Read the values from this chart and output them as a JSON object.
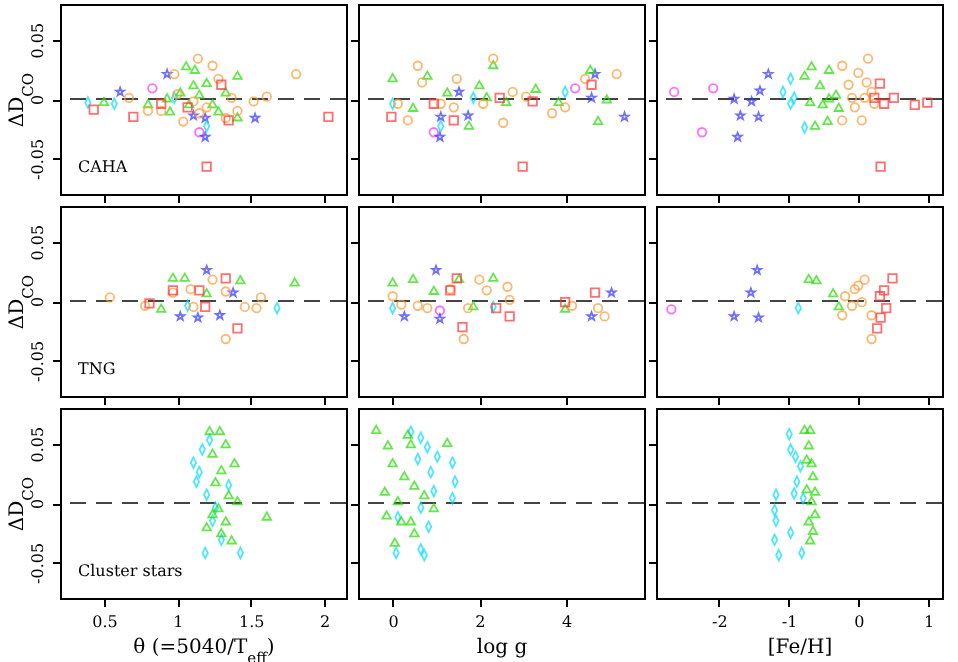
{
  "chart_data": [
    {
      "type": "scatter",
      "ylabel": "ΔD$_{CO}$",
      "annotations": [
        "CAHA"
      ],
      "xlim": [
        0.2,
        2.15
      ],
      "xticks": [
        0.5,
        1,
        1.5,
        2
      ],
      "ylim": [
        -0.08,
        0.08
      ],
      "yticks": [
        -0.05,
        0,
        0.05
      ],
      "tick_labels": "y",
      "ref_lines": [
        {
          "axis": "y",
          "value": 0,
          "line_style": "dashed"
        }
      ],
      "series": [
        {
          "color": "#ff33ff",
          "marker": "circle",
          "x": [
            0.83,
            1.15
          ],
          "values": [
            0.009,
            -0.028
          ]
        },
        {
          "color": "#3333ff",
          "marker": "star",
          "x": [
            0.61,
            0.93,
            1.11,
            1.19,
            1.19,
            1.53
          ],
          "values": [
            0.006,
            0.021,
            -0.014,
            -0.032,
            -0.016,
            -0.016
          ]
        },
        {
          "color": "#00ddff",
          "marker": "diamond",
          "x": [
            0.39,
            0.57,
            1.2,
            0.98
          ],
          "values": [
            -0.003,
            -0.004,
            -0.023,
            0.001
          ]
        },
        {
          "color": "#22dd00",
          "marker": "triangle",
          "x": [
            1.06,
            1.12,
            1.41,
            0.8,
            0.5,
            1.24,
            1.02,
            1.11,
            0.93,
            1.28,
            1.15,
            0.95,
            1.33,
            1.41,
            1.08,
            1.2
          ],
          "values": [
            0.028,
            0.025,
            0.02,
            -0.004,
            -0.002,
            -0.004,
            0.006,
            0.012,
            0.001,
            -0.01,
            0.004,
            -0.01,
            0.006,
            -0.015,
            -0.004,
            0.014
          ]
        },
        {
          "color": "#ff9933",
          "marker": "circle",
          "x": [
            1.14,
            1.24,
            1.81,
            0.98,
            1.61,
            1.52,
            1.04,
            0.67,
            1.33,
            1.41,
            0.89,
            1.11,
            1.2,
            1.0,
            1.28,
            1.37,
            0.8,
            1.15
          ],
          "values": [
            0.034,
            0.028,
            0.021,
            0.021,
            0.002,
            -0.002,
            -0.019,
            0.001,
            -0.016,
            -0.01,
            -0.01,
            -0.002,
            -0.007,
            0.004,
            0.017,
            0.001,
            -0.01,
            -0.012
          ]
        },
        {
          "color": "#ff3333",
          "marker": "square",
          "x": [
            0.43,
            0.7,
            1.2,
            1.35,
            2.03,
            1.3,
            1.07,
            0.89
          ],
          "values": [
            -0.009,
            -0.015,
            -0.057,
            -0.018,
            -0.015,
            0.012,
            -0.007,
            -0.004
          ]
        }
      ]
    },
    {
      "type": "scatter",
      "xlim": [
        -0.8,
        5.8
      ],
      "xticks": [
        0,
        2,
        4
      ],
      "ylim": [
        -0.08,
        0.08
      ],
      "yticks": [
        -0.05,
        0,
        0.05
      ],
      "tick_labels": false,
      "ref_lines": [
        {
          "axis": "y",
          "value": 0,
          "line_style": "dashed"
        }
      ],
      "series": [
        {
          "color": "#ff33ff",
          "marker": "circle",
          "x": [
            0.95,
            4.21
          ],
          "values": [
            -0.028,
            0.009
          ]
        },
        {
          "color": "#3333ff",
          "marker": "star",
          "x": [
            1.11,
            1.09,
            1.74,
            1.53,
            4.67,
            5.35,
            4.59
          ],
          "values": [
            -0.015,
            -0.032,
            -0.014,
            0.006,
            0.021,
            -0.015,
            0.001
          ]
        },
        {
          "color": "#00ddff",
          "marker": "diamond",
          "x": [
            1.11,
            0.0,
            1.86,
            3.98
          ],
          "values": [
            -0.023,
            -0.004,
            0.001,
            0.006
          ]
        },
        {
          "color": "#22dd00",
          "marker": "triangle",
          "x": [
            0.0,
            0.8,
            2.32,
            2.0,
            1.76,
            0.47,
            4.56,
            4.74,
            4.94,
            3.3,
            3.83,
            2.62,
            1.26,
            2.17
          ],
          "values": [
            0.018,
            0.02,
            0.029,
            0.012,
            -0.022,
            -0.007,
            0.025,
            -0.018,
            0,
            0.009,
            -0.002,
            -0.002,
            0.006,
            0.002
          ]
        },
        {
          "color": "#ff9933",
          "marker": "circle",
          "x": [
            0.58,
            2.32,
            5.17,
            0.68,
            0.35,
            2.55,
            1.48,
            4.44,
            3.68,
            2.77,
            0.12,
            1.41,
            2.09,
            3.98,
            3.08,
            1.11
          ],
          "values": [
            0.028,
            0.034,
            0.021,
            0.014,
            -0.018,
            -0.02,
            0.017,
            0.017,
            -0.012,
            0.006,
            -0.004,
            -0.007,
            -0.004,
            -0.007,
            0.002,
            -0.004
          ]
        },
        {
          "color": "#ff3333",
          "marker": "square",
          "x": [
            -0.03,
            3.0,
            0.95,
            1.41,
            3.23,
            4.59,
            2.47
          ],
          "values": [
            -0.015,
            -0.057,
            -0.004,
            -0.018,
            -0.002,
            0.012,
            0.001
          ]
        }
      ]
    },
    {
      "type": "scatter",
      "xlim": [
        -2.9,
        1.2
      ],
      "xticks": [
        -2,
        -1,
        0,
        1
      ],
      "ylim": [
        -0.08,
        0.08
      ],
      "yticks": [
        -0.05,
        0,
        0.05
      ],
      "tick_labels": false,
      "ref_lines": [
        {
          "axis": "y",
          "value": 0,
          "line_style": "dashed"
        }
      ],
      "series": [
        {
          "color": "#ff33ff",
          "marker": "circle",
          "x": [
            -2.64,
            -2.08,
            -2.24
          ],
          "values": [
            0.006,
            0.009,
            -0.028
          ]
        },
        {
          "color": "#3333ff",
          "marker": "star",
          "x": [
            -1.78,
            -1.53,
            -1.41,
            -1.29,
            -1.69,
            -1.43,
            -1.73
          ],
          "values": [
            0,
            -0.002,
            0.007,
            0.021,
            -0.014,
            -0.015,
            -0.032
          ]
        },
        {
          "color": "#00ddff",
          "marker": "diamond",
          "x": [
            -0.97,
            -1.08,
            -0.97,
            -0.77,
            -0.92
          ],
          "values": [
            0.017,
            0.006,
            -0.004,
            -0.024,
            0.001
          ]
        },
        {
          "color": "#22dd00",
          "marker": "triangle",
          "x": [
            -0.67,
            -0.77,
            -0.42,
            -0.55,
            -0.69,
            -0.42,
            -0.32,
            -0.62,
            -0.44,
            -0.51,
            -0.28
          ],
          "values": [
            0.028,
            0.02,
            0.025,
            0.012,
            -0.002,
            0.001,
            0.004,
            -0.022,
            -0.018,
            -0.004,
            -0.007
          ]
        },
        {
          "color": "#ff9933",
          "marker": "circle",
          "x": [
            -0.23,
            0.14,
            0.0,
            -0.14,
            0.09,
            0.23,
            -0.23,
            0.05,
            -0.05,
            0.19,
            -0.09,
            0.12
          ],
          "values": [
            0.028,
            0.034,
            0.022,
            0.012,
            0.001,
            -0.004,
            -0.018,
            -0.018,
            -0.007,
            0.006,
            0.001,
            0.014
          ]
        },
        {
          "color": "#ff3333",
          "marker": "square",
          "x": [
            0.31,
            0.51,
            0.81,
            0.99,
            0.32,
            0.37,
            0.23
          ],
          "values": [
            0.013,
            0.001,
            -0.005,
            -0.003,
            -0.057,
            -0.004,
            0.001
          ]
        }
      ]
    },
    {
      "type": "scatter",
      "ylabel": "ΔD$_{CO}$",
      "annotations": [
        "TNG"
      ],
      "xlim": [
        0.2,
        2.15
      ],
      "xticks": [
        0.5,
        1,
        1.5,
        2
      ],
      "ylim": [
        -0.08,
        0.08
      ],
      "yticks": [
        -0.05,
        0,
        0.05
      ],
      "tick_labels": "y",
      "ref_lines": [
        {
          "axis": "y",
          "value": 0,
          "line_style": "dashed"
        }
      ],
      "series": [
        {
          "color": "#3333ff",
          "marker": "star",
          "x": [
            1.2,
            1.38,
            1.02,
            1.14,
            1.29
          ],
          "values": [
            0.026,
            0.007,
            -0.013,
            -0.014,
            -0.012
          ]
        },
        {
          "color": "#00ddff",
          "marker": "diamond",
          "x": [
            1.68,
            1.07
          ],
          "values": [
            -0.006,
            -0.004
          ]
        },
        {
          "color": "#22dd00",
          "marker": "triangle",
          "x": [
            0.97,
            1.05,
            1.43,
            1.8,
            0.89,
            1.2
          ],
          "values": [
            0.02,
            0.02,
            0.018,
            0.016,
            -0.006,
            0.007
          ]
        },
        {
          "color": "#ff9933",
          "marker": "circle",
          "x": [
            0.54,
            1.09,
            0.97,
            1.24,
            1.33,
            1.57,
            0.78,
            1.11,
            1.46,
            1.54,
            1.33
          ],
          "values": [
            0.003,
            0.01,
            0.007,
            0.018,
            0.008,
            0.003,
            -0.004,
            -0.005,
            -0.005,
            -0.006,
            -0.032
          ]
        },
        {
          "color": "#ff3333",
          "marker": "square",
          "x": [
            1.33,
            0.97,
            1.15,
            0.81,
            1.41,
            1.19
          ],
          "values": [
            0.019,
            0.009,
            0.009,
            -0.002,
            -0.023,
            -0.005
          ]
        }
      ]
    },
    {
      "type": "scatter",
      "xlim": [
        -0.8,
        5.8
      ],
      "xticks": [
        0,
        2,
        4
      ],
      "ylim": [
        -0.08,
        0.08
      ],
      "yticks": [
        -0.05,
        0,
        0.05
      ],
      "tick_labels": false,
      "ref_lines": [
        {
          "axis": "y",
          "value": 0,
          "line_style": "dashed"
        }
      ],
      "series": [
        {
          "color": "#ff33ff",
          "marker": "circle",
          "x": [
            1.09
          ],
          "values": [
            -0.008
          ]
        },
        {
          "color": "#3333ff",
          "marker": "star",
          "x": [
            1.0,
            0.27,
            1.09,
            4.59,
            5.05
          ],
          "values": [
            0.026,
            -0.013,
            -0.015,
            -0.013,
            0.007
          ]
        },
        {
          "color": "#00ddff",
          "marker": "diamond",
          "x": [
            0.0,
            2.32
          ],
          "values": [
            -0.006,
            -0.005
          ]
        },
        {
          "color": "#22dd00",
          "marker": "triangle",
          "x": [
            0.0,
            0.47,
            0.95,
            1.53,
            2.32,
            3.98,
            1.86
          ],
          "values": [
            0.016,
            0.019,
            0.009,
            0.019,
            0.02,
            -0.006,
            -0.004
          ]
        },
        {
          "color": "#ff9933",
          "marker": "circle",
          "x": [
            0.0,
            0.2,
            0.58,
            0.8,
            1.33,
            2.0,
            2.17,
            2.65,
            2.7,
            1.74,
            4.14,
            4.74,
            4.89,
            1.64
          ],
          "values": [
            0.004,
            -0.003,
            -0.004,
            -0.006,
            0.01,
            0.018,
            0.009,
            0.012,
            0.001,
            -0.006,
            -0.004,
            -0.006,
            -0.013,
            -0.032
          ]
        },
        {
          "color": "#ff3333",
          "marker": "square",
          "x": [
            1.48,
            1.33,
            2.39,
            2.7,
            3.98,
            4.67,
            1.61
          ],
          "values": [
            0.019,
            0.009,
            -0.006,
            -0.013,
            -0.001,
            0.007,
            -0.022
          ]
        }
      ]
    },
    {
      "type": "scatter",
      "xlim": [
        -2.9,
        1.2
      ],
      "xticks": [
        -2,
        -1,
        0,
        1
      ],
      "ylim": [
        -0.08,
        0.08
      ],
      "yticks": [
        -0.05,
        0,
        0.05
      ],
      "tick_labels": false,
      "ref_lines": [
        {
          "axis": "y",
          "value": 0,
          "line_style": "dashed"
        }
      ],
      "series": [
        {
          "color": "#ff33ff",
          "marker": "circle",
          "x": [
            -2.68
          ],
          "values": [
            -0.007
          ]
        },
        {
          "color": "#3333ff",
          "marker": "star",
          "x": [
            -1.45,
            -1.54,
            -1.78,
            -1.43
          ],
          "values": [
            0.026,
            0.007,
            -0.013,
            -0.014
          ]
        },
        {
          "color": "#00ddff",
          "marker": "diamond",
          "x": [
            -0.86
          ],
          "values": [
            -0.006
          ]
        },
        {
          "color": "#22dd00",
          "marker": "triangle",
          "x": [
            -0.71,
            -0.6,
            -0.36,
            -0.28
          ],
          "values": [
            0.019,
            0.018,
            0.007,
            -0.004
          ]
        },
        {
          "color": "#ff9933",
          "marker": "circle",
          "x": [
            -0.19,
            -0.05,
            0.09,
            -0.09,
            0.05,
            -0.23,
            0.19,
            0.0,
            0.19
          ],
          "values": [
            0.004,
            0.01,
            0.018,
            -0.004,
            -0.001,
            -0.012,
            -0.012,
            0.013,
            -0.032
          ]
        },
        {
          "color": "#ff3333",
          "marker": "square",
          "x": [
            0.49,
            0.37,
            0.31,
            0.4,
            0.32,
            0.27
          ],
          "values": [
            0.019,
            0.009,
            0.004,
            -0.006,
            -0.014,
            -0.023
          ]
        }
      ]
    },
    {
      "type": "scatter",
      "ylabel": "ΔD$_{CO}$",
      "xlabel": "θ (=5040/T$_{eff}$)",
      "annotations": [
        "Cluster stars"
      ],
      "xlim": [
        0.2,
        2.15
      ],
      "xticks": [
        0.5,
        1,
        1.5,
        2
      ],
      "ylim": [
        -0.08,
        0.08
      ],
      "yticks": [
        -0.05,
        0,
        0.05
      ],
      "ref_lines": [
        {
          "axis": "y",
          "value": 0,
          "line_style": "dashed"
        }
      ],
      "series": [
        {
          "color": "#00ddff",
          "marker": "diamond",
          "x": [
            1.11,
            1.17,
            1.13,
            1.2,
            1.24,
            1.19,
            1.43,
            1.3,
            1.26,
            1.15,
            1.22,
            1.35
          ],
          "values": [
            0.034,
            0.045,
            0.018,
            0.007,
            -0.015,
            -0.042,
            -0.042,
            -0.031,
            -0.004,
            0.026,
            0.053,
            0.015
          ]
        },
        {
          "color": "#22dd00",
          "marker": "triangle",
          "x": [
            1.22,
            1.29,
            1.33,
            1.24,
            1.39,
            1.3,
            1.26,
            1.35,
            1.28,
            1.24,
            1.33,
            1.3,
            1.37,
            1.61,
            1.2,
            1.41
          ],
          "values": [
            0.061,
            0.061,
            0.05,
            0.042,
            0.034,
            0.028,
            0.018,
            0.007,
            -0.004,
            -0.009,
            -0.015,
            -0.025,
            -0.031,
            -0.011,
            -0.02,
            0.002
          ]
        }
      ]
    },
    {
      "type": "scatter",
      "xlabel": "log g",
      "xlim": [
        -0.8,
        5.8
      ],
      "xticks": [
        0,
        2,
        4
      ],
      "ylim": [
        -0.08,
        0.08
      ],
      "yticks": [
        -0.05,
        0,
        0.05
      ],
      "tick_labels": "x",
      "ref_lines": [
        {
          "axis": "y",
          "value": 0,
          "line_style": "dashed"
        }
      ],
      "series": [
        {
          "color": "#00ddff",
          "marker": "diamond",
          "x": [
            0.42,
            0.65,
            0.8,
            0.58,
            1.03,
            0.88,
            1.38,
            1.44,
            1.38,
            0.95,
            0.65,
            0.12,
            0.83,
            0.65,
            0.08,
            0.73
          ],
          "values": [
            0.06,
            0.055,
            0.047,
            0.037,
            0.039,
            0.026,
            0.034,
            0.018,
            0.004,
            0.01,
            -0.004,
            -0.012,
            -0.02,
            -0.039,
            -0.042,
            -0.044
          ]
        },
        {
          "color": "#22dd00",
          "marker": "triangle",
          "x": [
            -0.38,
            -0.11,
            0.0,
            0.35,
            0.42,
            0.27,
            0.5,
            -0.18,
            -0.14,
            0.12,
            0.42,
            0.5,
            0.05,
            1.26,
            0.95,
            0.73,
            0.2
          ],
          "values": [
            0.062,
            0.049,
            0.034,
            0.058,
            0.05,
            0.023,
            0.015,
            0.01,
            -0.01,
            0.002,
            -0.015,
            -0.025,
            -0.033,
            0.051,
            -0.004,
            0.007,
            -0.015
          ]
        }
      ]
    },
    {
      "type": "scatter",
      "xlabel": "[Fe/H]",
      "xlim": [
        -2.9,
        1.2
      ],
      "xticks": [
        -2,
        -1,
        0,
        1
      ],
      "ylim": [
        -0.08,
        0.08
      ],
      "yticks": [
        -0.05,
        0,
        0.05
      ],
      "tick_labels": "x",
      "ref_lines": [
        {
          "axis": "y",
          "value": 0,
          "line_style": "dashed"
        }
      ],
      "series": [
        {
          "color": "#00ddff",
          "marker": "diamond",
          "x": [
            -0.99,
            -0.97,
            -0.83,
            -0.88,
            -0.92,
            -1.18,
            -1.2,
            -1.18,
            -0.97,
            -1.2,
            -1.14,
            -0.81,
            -0.79,
            -0.9
          ],
          "values": [
            0.058,
            0.045,
            0.031,
            0.018,
            0.008,
            0.007,
            -0.006,
            -0.015,
            -0.025,
            -0.031,
            -0.044,
            -0.042,
            0.004,
            0.039
          ]
        },
        {
          "color": "#22dd00",
          "marker": "triangle",
          "x": [
            -0.77,
            -0.69,
            -0.71,
            -0.67,
            -0.65,
            -0.74,
            -0.67,
            -0.62,
            -0.71,
            -0.65,
            -0.69,
            -0.62,
            -0.74
          ],
          "values": [
            0.062,
            0.062,
            0.049,
            0.034,
            0.023,
            0.012,
            0.002,
            -0.009,
            -0.015,
            -0.023,
            -0.031,
            0.01,
            0.037
          ]
        }
      ]
    }
  ]
}
